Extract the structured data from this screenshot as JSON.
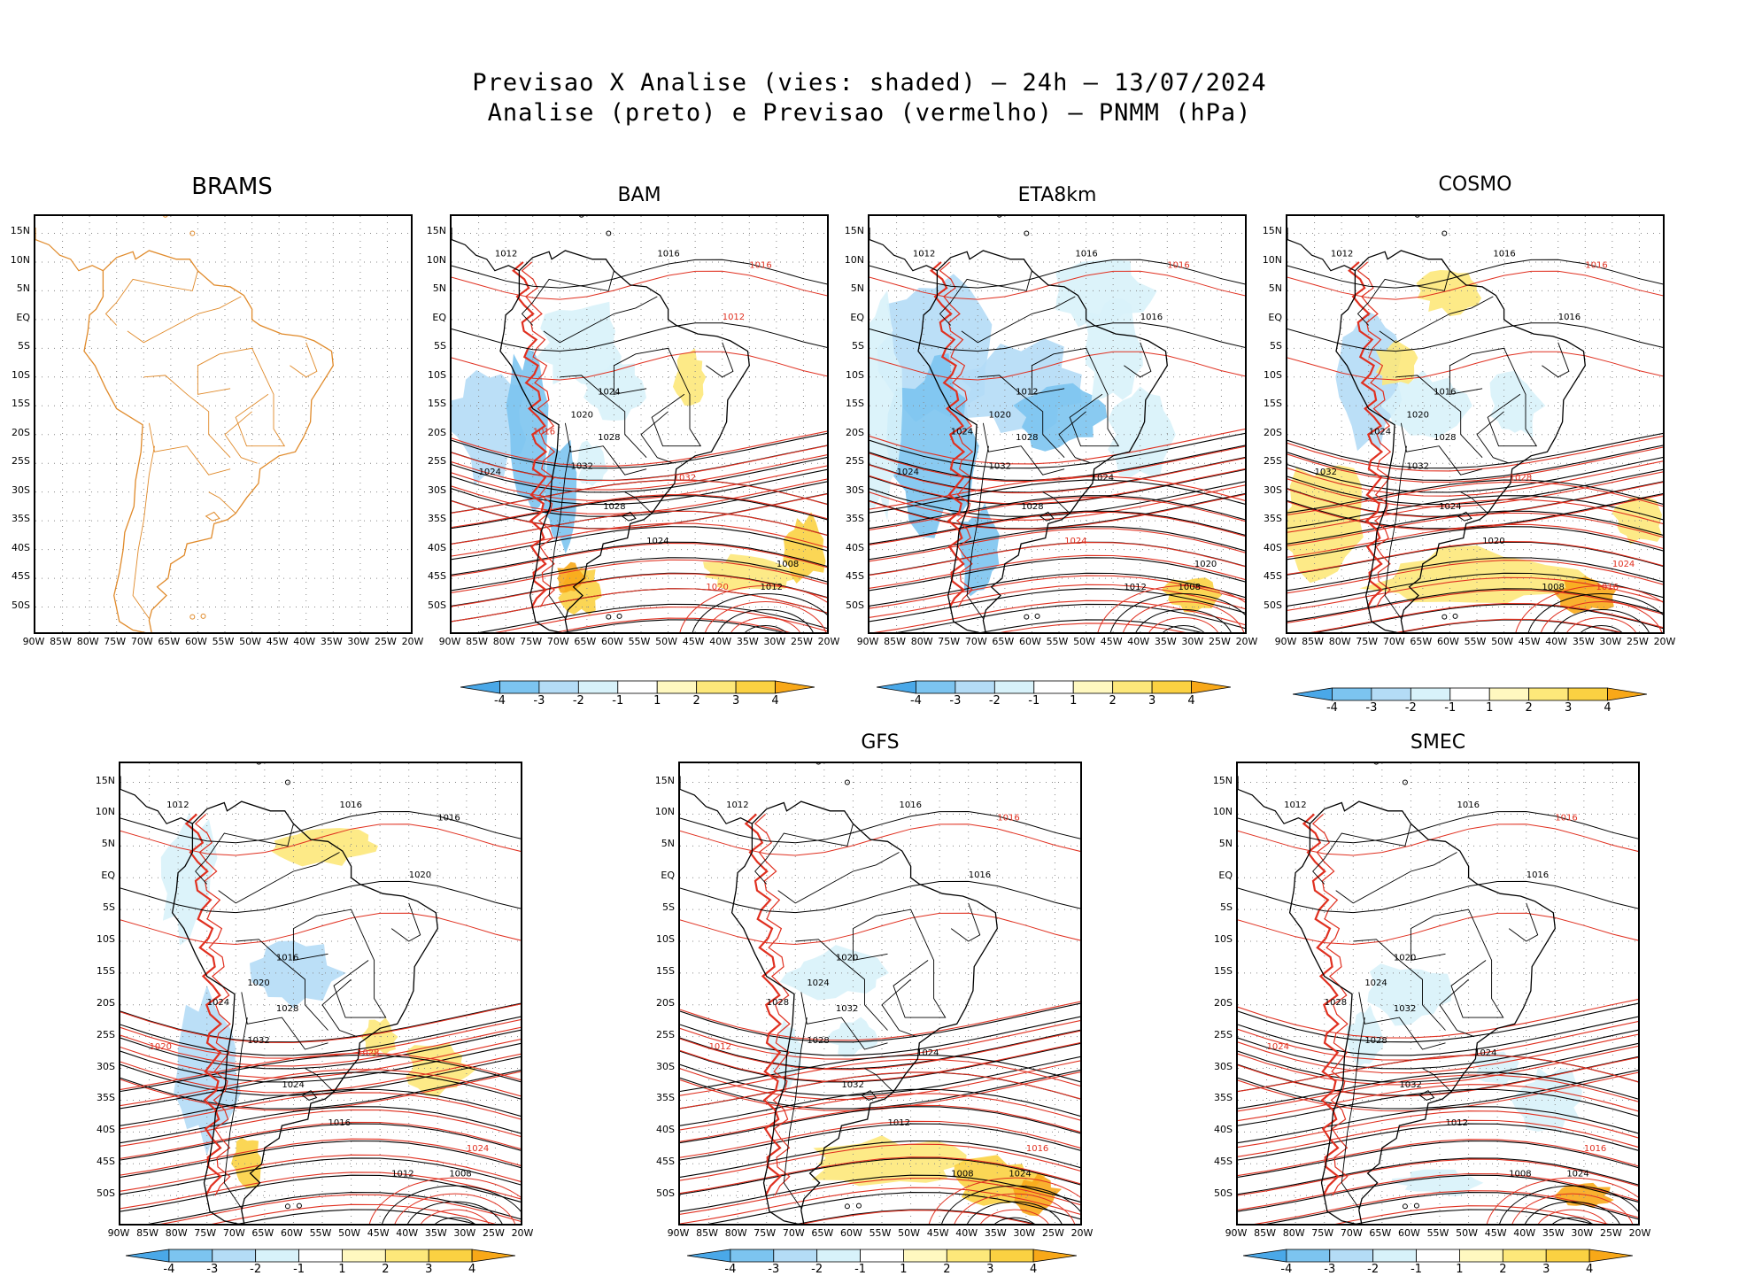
{
  "title": {
    "line1": "Previsao X Analise (vies: shaded) — 24h — 13/07/2024",
    "line2": "Analise (preto) e Previsao (vermelho) — PNMM (hPa)"
  },
  "panels": [
    {
      "id": "brams",
      "name": "BRAMS",
      "has_data": false,
      "has_colorbar": false
    },
    {
      "id": "bam",
      "name": "BAM",
      "has_data": true,
      "has_colorbar": true
    },
    {
      "id": "eta",
      "name": "ETA8km",
      "has_data": true,
      "has_colorbar": true
    },
    {
      "id": "cosmo",
      "name": "COSMO",
      "has_data": true,
      "has_colorbar": true
    },
    {
      "id": "unnamed",
      "name": "",
      "has_data": true,
      "has_colorbar": true
    },
    {
      "id": "gfs",
      "name": "GFS",
      "has_data": true,
      "has_colorbar": true
    },
    {
      "id": "smec",
      "name": "SMEC",
      "has_data": true,
      "has_colorbar": true
    }
  ],
  "axes": {
    "lat_labels": [
      "15N",
      "10N",
      "5N",
      "EQ",
      "5S",
      "10S",
      "15S",
      "20S",
      "25S",
      "30S",
      "35S",
      "40S",
      "45S",
      "50S"
    ],
    "lon_labels": [
      "90W",
      "85W",
      "80W",
      "75W",
      "70W",
      "65W",
      "60W",
      "55W",
      "50W",
      "45W",
      "40W",
      "35W",
      "30W",
      "25W",
      "20W"
    ]
  },
  "colorbar": {
    "labels": [
      "-4",
      "-3",
      "-2",
      "-1",
      "1",
      "2",
      "3",
      "4"
    ],
    "colors": [
      "#4aa8e8",
      "#7cc4f0",
      "#b4dcf6",
      "#d8f2fa",
      "#ffffff",
      "#fff8c0",
      "#fde87a",
      "#fbd142",
      "#f8a818"
    ]
  },
  "colors": {
    "analysis": "#000000",
    "forecast": "#e03020",
    "coast_brams": "#e08a2a",
    "grid": "#888888"
  },
  "contour_labels": {
    "bam": [
      {
        "t": "1012",
        "c": "a"
      },
      {
        "t": "1016",
        "c": "a"
      },
      {
        "t": "1016",
        "c": "f"
      },
      {
        "t": "1012",
        "c": "f"
      },
      {
        "t": "1024",
        "c": "a"
      },
      {
        "t": "1020",
        "c": "a"
      },
      {
        "t": "1016",
        "c": "f"
      },
      {
        "t": "1028",
        "c": "a"
      },
      {
        "t": "1032",
        "c": "a"
      },
      {
        "t": "1032",
        "c": "f"
      },
      {
        "t": "1028",
        "c": "a"
      },
      {
        "t": "1024",
        "c": "a"
      },
      {
        "t": "1020",
        "c": "f"
      },
      {
        "t": "1012",
        "c": "a"
      },
      {
        "t": "1008",
        "c": "a"
      },
      {
        "t": "1024",
        "c": "a"
      }
    ],
    "eta": [
      {
        "t": "1012",
        "c": "a"
      },
      {
        "t": "1016",
        "c": "a"
      },
      {
        "t": "1016",
        "c": "f"
      },
      {
        "t": "1016",
        "c": "a"
      },
      {
        "t": "1012",
        "c": "a"
      },
      {
        "t": "1020",
        "c": "a"
      },
      {
        "t": "1024",
        "c": "a"
      },
      {
        "t": "1028",
        "c": "a"
      },
      {
        "t": "1032",
        "c": "a"
      },
      {
        "t": "1024",
        "c": "a"
      },
      {
        "t": "1028",
        "c": "a"
      },
      {
        "t": "1024",
        "c": "f"
      },
      {
        "t": "1012",
        "c": "a"
      },
      {
        "t": "1008",
        "c": "a"
      },
      {
        "t": "1020",
        "c": "a"
      },
      {
        "t": "1024",
        "c": "a"
      }
    ],
    "cosmo": [
      {
        "t": "1012",
        "c": "a"
      },
      {
        "t": "1016",
        "c": "a"
      },
      {
        "t": "1016",
        "c": "f"
      },
      {
        "t": "1016",
        "c": "a"
      },
      {
        "t": "1016",
        "c": "a"
      },
      {
        "t": "1020",
        "c": "a"
      },
      {
        "t": "1024",
        "c": "a"
      },
      {
        "t": "1028",
        "c": "a"
      },
      {
        "t": "1032",
        "c": "a"
      },
      {
        "t": "1028",
        "c": "f"
      },
      {
        "t": "1024",
        "c": "a"
      },
      {
        "t": "1020",
        "c": "a"
      },
      {
        "t": "1008",
        "c": "a"
      },
      {
        "t": "1016",
        "c": "f"
      },
      {
        "t": "1024",
        "c": "f"
      },
      {
        "t": "1032",
        "c": "a"
      }
    ],
    "unnamed": [
      {
        "t": "1012",
        "c": "a"
      },
      {
        "t": "1016",
        "c": "a"
      },
      {
        "t": "1016",
        "c": "a"
      },
      {
        "t": "1020",
        "c": "a"
      },
      {
        "t": "1016",
        "c": "a"
      },
      {
        "t": "1020",
        "c": "a"
      },
      {
        "t": "1024",
        "c": "a"
      },
      {
        "t": "1028",
        "c": "a"
      },
      {
        "t": "1032",
        "c": "a"
      },
      {
        "t": "1028",
        "c": "f"
      },
      {
        "t": "1024",
        "c": "a"
      },
      {
        "t": "1016",
        "c": "a"
      },
      {
        "t": "1012",
        "c": "a"
      },
      {
        "t": "1008",
        "c": "a"
      },
      {
        "t": "1024",
        "c": "f"
      },
      {
        "t": "1020",
        "c": "f"
      }
    ],
    "gfs": [
      {
        "t": "1012",
        "c": "a"
      },
      {
        "t": "1016",
        "c": "a"
      },
      {
        "t": "1016",
        "c": "f"
      },
      {
        "t": "1016",
        "c": "a"
      },
      {
        "t": "1020",
        "c": "a"
      },
      {
        "t": "1024",
        "c": "a"
      },
      {
        "t": "1028",
        "c": "a"
      },
      {
        "t": "1032",
        "c": "a"
      },
      {
        "t": "1028",
        "c": "a"
      },
      {
        "t": "1024",
        "c": "a"
      },
      {
        "t": "1032",
        "c": "a"
      },
      {
        "t": "1012",
        "c": "a"
      },
      {
        "t": "1008",
        "c": "a"
      },
      {
        "t": "1024",
        "c": "a"
      },
      {
        "t": "1016",
        "c": "f"
      },
      {
        "t": "1012",
        "c": "f"
      }
    ],
    "smec": [
      {
        "t": "1012",
        "c": "a"
      },
      {
        "t": "1016",
        "c": "a"
      },
      {
        "t": "1016",
        "c": "f"
      },
      {
        "t": "1016",
        "c": "a"
      },
      {
        "t": "1020",
        "c": "a"
      },
      {
        "t": "1024",
        "c": "a"
      },
      {
        "t": "1028",
        "c": "a"
      },
      {
        "t": "1032",
        "c": "a"
      },
      {
        "t": "1028",
        "c": "a"
      },
      {
        "t": "1024",
        "c": "a"
      },
      {
        "t": "1032",
        "c": "a"
      },
      {
        "t": "1012",
        "c": "a"
      },
      {
        "t": "1008",
        "c": "a"
      },
      {
        "t": "1024",
        "c": "a"
      },
      {
        "t": "1016",
        "c": "f"
      },
      {
        "t": "1024",
        "c": "f"
      }
    ]
  }
}
